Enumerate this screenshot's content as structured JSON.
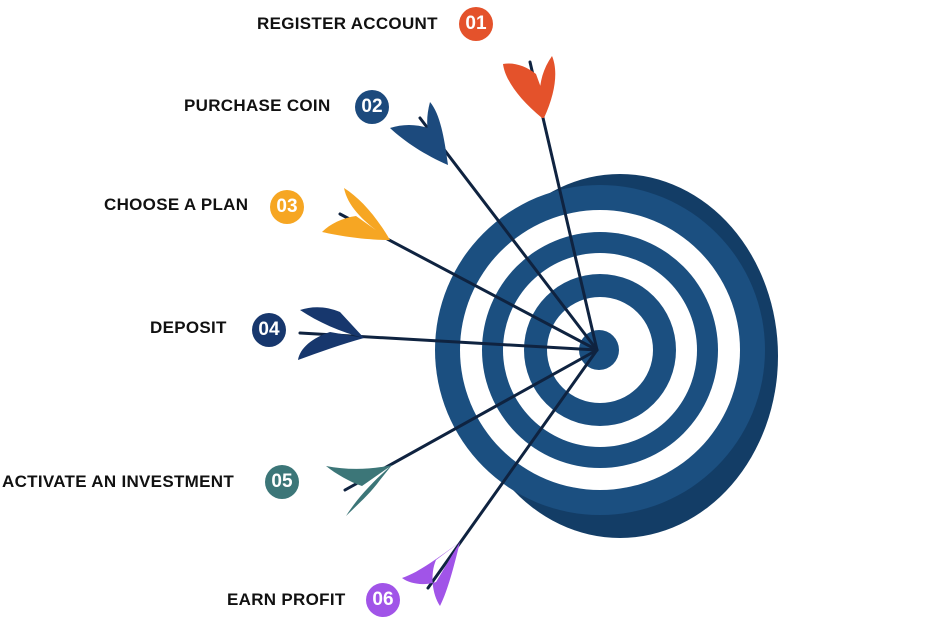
{
  "steps": [
    {
      "label": "REGISTER ACCOUNT",
      "number": "01",
      "color": "#e4522b"
    },
    {
      "label": "PURCHASE COIN",
      "number": "02",
      "color": "#1c4a7d"
    },
    {
      "label": "CHOOSE A PLAN",
      "number": "03",
      "color": "#f6a623"
    },
    {
      "label": "DEPOSIT",
      "number": "04",
      "color": "#17376d"
    },
    {
      "label": "ACTIVATE AN INVESTMENT",
      "number": "05",
      "color": "#3c7678"
    },
    {
      "label": "EARN PROFIT",
      "number": "06",
      "color": "#a154e8"
    }
  ],
  "target": {
    "ring_color": "#1b4f80",
    "ring_dark_color": "#153f69",
    "gap_color": "#ffffff",
    "shaft_color": "#0f2340"
  }
}
